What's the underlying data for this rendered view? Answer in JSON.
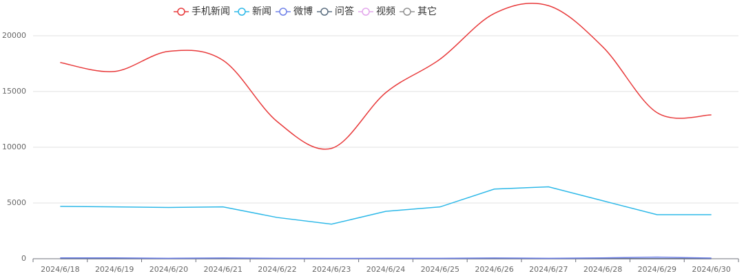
{
  "chart_data": {
    "type": "line",
    "categories": [
      "2024/6/18",
      "2024/6/19",
      "2024/6/20",
      "2024/6/21",
      "2024/6/22",
      "2024/6/23",
      "2024/6/24",
      "2024/6/25",
      "2024/6/26",
      "2024/6/27",
      "2024/6/28",
      "2024/6/29",
      "2024/6/30"
    ],
    "series": [
      {
        "name": "手机新闻",
        "color": "#e8393a",
        "smooth": true,
        "values": [
          17600,
          16800,
          18600,
          17800,
          12300,
          9900,
          14900,
          17900,
          22000,
          22700,
          19000,
          13100,
          12900
        ]
      },
      {
        "name": "新闻",
        "color": "#2cb8e8",
        "smooth": false,
        "values": [
          4700,
          4650,
          4600,
          4650,
          3700,
          3100,
          4250,
          4650,
          6250,
          6450,
          5200,
          3950,
          3950
        ]
      },
      {
        "name": "微博",
        "color": "#6e80e8",
        "smooth": false,
        "values": [
          80,
          80,
          40,
          70,
          40,
          30,
          40,
          40,
          70,
          40,
          80,
          150,
          60
        ]
      },
      {
        "name": "问答",
        "color": "#5b6e80",
        "smooth": false,
        "values": [
          10,
          10,
          10,
          10,
          10,
          10,
          10,
          10,
          10,
          10,
          10,
          10,
          10
        ]
      },
      {
        "name": "视频",
        "color": "#e3a6ec",
        "smooth": false,
        "values": [
          5,
          5,
          5,
          5,
          5,
          5,
          5,
          5,
          5,
          5,
          5,
          5,
          5
        ]
      },
      {
        "name": "其它",
        "color": "#909090",
        "smooth": false,
        "values": [
          0,
          0,
          0,
          0,
          0,
          0,
          0,
          0,
          0,
          0,
          0,
          0,
          0
        ]
      }
    ],
    "ylim": [
      0,
      23000
    ],
    "yticks": [
      0,
      5000,
      10000,
      15000,
      20000
    ],
    "grid": true
  }
}
